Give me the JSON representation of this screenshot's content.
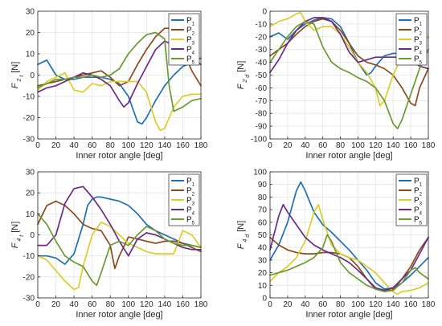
{
  "colors": {
    "P1": "#1f6fb4",
    "P2": "#8c4a1c",
    "P3": "#ddcc28",
    "P4": "#6a2a8a",
    "P5": "#6a9a2e",
    "grid": "#e3e3e3",
    "axis": "#262626"
  },
  "chart_data": [
    {
      "type": "line",
      "ylabel_main": "F",
      "ylabel_sub1": "2",
      "ylabel_sub2": "t",
      "ylabel_unit": "[N]",
      "xlabel": "Inner rotor angle [deg]",
      "xlim": [
        0,
        180
      ],
      "ylim": [
        -30,
        30
      ],
      "xticks": [
        0,
        20,
        40,
        60,
        80,
        100,
        120,
        140,
        160,
        180
      ],
      "yticks": [
        -30,
        -20,
        -10,
        0,
        10,
        20,
        30
      ],
      "grid": true,
      "legend": "top-right",
      "series": [
        {
          "name": "P",
          "sub": "1",
          "key": "P1",
          "x": [
            0,
            10,
            20,
            30,
            40,
            50,
            60,
            70,
            80,
            90,
            100,
            105,
            110,
            115,
            120,
            130,
            140,
            150,
            160,
            170,
            180
          ],
          "y": [
            5,
            7,
            0,
            -2,
            -2,
            -1,
            -1,
            -1,
            -2,
            -4,
            -10,
            -16,
            -22,
            -23,
            -20,
            -12,
            -5,
            0,
            4,
            6,
            8
          ]
        },
        {
          "name": "P",
          "sub": "2",
          "key": "P2",
          "x": [
            0,
            10,
            20,
            30,
            40,
            50,
            60,
            70,
            80,
            90,
            100,
            110,
            120,
            130,
            140,
            150,
            160,
            170,
            180
          ],
          "y": [
            -5,
            -4,
            -3,
            -2,
            -1,
            0,
            1,
            2,
            -1,
            -5,
            -3,
            5,
            12,
            18,
            22,
            22,
            12,
            2,
            -5
          ]
        },
        {
          "name": "P",
          "sub": "3",
          "key": "P3",
          "x": [
            0,
            10,
            20,
            30,
            35,
            40,
            50,
            60,
            70,
            80,
            90,
            100,
            110,
            120,
            130,
            135,
            140,
            150,
            160,
            170,
            180
          ],
          "y": [
            -7,
            -3,
            -1,
            1,
            -3,
            -7,
            -8,
            -4,
            -5,
            -3,
            -3,
            -3,
            -3,
            -8,
            -22,
            -26,
            -25,
            -15,
            -10,
            -9,
            -9
          ]
        },
        {
          "name": "P",
          "sub": "4",
          "key": "P4",
          "x": [
            0,
            10,
            20,
            30,
            40,
            50,
            60,
            70,
            80,
            90,
            95,
            100,
            110,
            120,
            130,
            140,
            150,
            160,
            170,
            180
          ],
          "y": [
            -8,
            -6,
            -5,
            -3,
            -1,
            1,
            0,
            -2,
            -5,
            -12,
            -15,
            -13,
            -4,
            4,
            12,
            16,
            14,
            12,
            8,
            5
          ]
        },
        {
          "name": "P",
          "sub": "5",
          "key": "P5",
          "x": [
            0,
            10,
            20,
            30,
            40,
            50,
            60,
            70,
            80,
            90,
            100,
            110,
            120,
            130,
            140,
            145,
            150,
            160,
            170,
            180
          ],
          "y": [
            -6,
            -4,
            -2,
            -2,
            -1,
            -1,
            0,
            -1,
            0,
            3,
            10,
            15,
            19,
            20,
            17,
            -5,
            -17,
            -15,
            -12,
            -11
          ]
        }
      ]
    },
    {
      "type": "line",
      "ylabel_main": "F",
      "ylabel_sub1": "2",
      "ylabel_sub2": "d",
      "ylabel_unit": "[N]",
      "xlabel": "Inner rotor angle [deg]",
      "xlim": [
        0,
        180
      ],
      "ylim": [
        -100,
        0
      ],
      "xticks": [
        0,
        20,
        40,
        60,
        80,
        100,
        120,
        140,
        160,
        180
      ],
      "yticks": [
        -100,
        -90,
        -80,
        -70,
        -60,
        -50,
        -40,
        -30,
        -20,
        -10,
        0
      ],
      "grid": true,
      "legend": "top-right",
      "series": [
        {
          "name": "P",
          "sub": "1",
          "key": "P1",
          "x": [
            0,
            10,
            20,
            30,
            40,
            50,
            60,
            70,
            80,
            90,
            100,
            110,
            115,
            120,
            130,
            140,
            150,
            160,
            170,
            180
          ],
          "y": [
            -20,
            -17,
            -22,
            -15,
            -10,
            -7,
            -5,
            -6,
            -12,
            -25,
            -40,
            -50,
            -48,
            -43,
            -35,
            -33,
            -33,
            -30,
            -25,
            -20
          ]
        },
        {
          "name": "P",
          "sub": "2",
          "key": "P2",
          "x": [
            0,
            10,
            20,
            30,
            40,
            50,
            60,
            70,
            80,
            90,
            100,
            110,
            120,
            130,
            140,
            150,
            160,
            165,
            170,
            180
          ],
          "y": [
            -35,
            -30,
            -25,
            -18,
            -12,
            -8,
            -6,
            -8,
            -15,
            -25,
            -35,
            -40,
            -42,
            -45,
            -50,
            -60,
            -72,
            -74,
            -60,
            -45
          ]
        },
        {
          "name": "P",
          "sub": "3",
          "key": "P3",
          "x": [
            0,
            10,
            20,
            30,
            35,
            40,
            50,
            60,
            70,
            80,
            90,
            100,
            110,
            120,
            125,
            130,
            140,
            150,
            160,
            170,
            180
          ],
          "y": [
            -12,
            -8,
            -6,
            -2,
            -1,
            -8,
            -15,
            -12,
            -12,
            -18,
            -28,
            -40,
            -48,
            -60,
            -74,
            -70,
            -50,
            -35,
            -30,
            -25,
            -20
          ]
        },
        {
          "name": "P",
          "sub": "4",
          "key": "P4",
          "x": [
            0,
            10,
            20,
            30,
            40,
            50,
            60,
            70,
            80,
            90,
            100,
            110,
            120,
            130,
            140,
            150,
            160,
            170,
            180
          ],
          "y": [
            -48,
            -38,
            -25,
            -15,
            -8,
            -5,
            -5,
            -8,
            -18,
            -32,
            -40,
            -38,
            -36,
            -36,
            -36,
            -36,
            -38,
            -43,
            -45
          ]
        },
        {
          "name": "P",
          "sub": "5",
          "key": "P5",
          "x": [
            0,
            10,
            20,
            30,
            40,
            50,
            60,
            70,
            80,
            90,
            100,
            110,
            120,
            130,
            140,
            145,
            150,
            160,
            170,
            180
          ],
          "y": [
            -40,
            -30,
            -20,
            -12,
            -8,
            -10,
            -28,
            -40,
            -45,
            -48,
            -52,
            -55,
            -60,
            -70,
            -88,
            -92,
            -85,
            -65,
            -45,
            -30
          ]
        }
      ]
    },
    {
      "type": "line",
      "ylabel_main": "F",
      "ylabel_sub1": "4",
      "ylabel_sub2": "t",
      "ylabel_unit": "[N]",
      "xlabel": "Inner rotor angle [deg]",
      "xlim": [
        0,
        180
      ],
      "ylim": [
        -30,
        30
      ],
      "xticks": [
        0,
        20,
        40,
        60,
        80,
        100,
        120,
        140,
        160,
        180
      ],
      "yticks": [
        -30,
        -20,
        -10,
        0,
        10,
        20,
        30
      ],
      "grid": true,
      "legend": "top-right",
      "series": [
        {
          "name": "P",
          "sub": "1",
          "key": "P1",
          "x": [
            0,
            10,
            20,
            30,
            40,
            50,
            55,
            60,
            65,
            70,
            80,
            90,
            100,
            110,
            120,
            130,
            140,
            150,
            160,
            170,
            180
          ],
          "y": [
            -10,
            -10,
            -11,
            -14,
            -9,
            5,
            14,
            17,
            18,
            18,
            17,
            16,
            14,
            10,
            5,
            2,
            0,
            -2,
            -4,
            -5,
            -6
          ]
        },
        {
          "name": "P",
          "sub": "2",
          "key": "P2",
          "x": [
            0,
            10,
            20,
            30,
            40,
            50,
            60,
            70,
            80,
            85,
            90,
            100,
            110,
            120,
            130,
            140,
            150,
            160,
            170,
            180
          ],
          "y": [
            5,
            14,
            16,
            14,
            10,
            5,
            3,
            2,
            -5,
            -16,
            -10,
            -1,
            -2,
            -3,
            -4,
            -3,
            -3,
            -4,
            -6,
            -8
          ]
        },
        {
          "name": "P",
          "sub": "3",
          "key": "P3",
          "x": [
            0,
            10,
            20,
            30,
            40,
            45,
            50,
            60,
            70,
            80,
            90,
            100,
            110,
            120,
            130,
            140,
            150,
            160,
            170,
            180
          ],
          "y": [
            -10,
            -12,
            -17,
            -22,
            -26,
            -25,
            -15,
            0,
            6,
            4,
            0,
            -4,
            -6,
            -8,
            -9,
            -9,
            -9,
            2,
            0,
            -6
          ]
        },
        {
          "name": "P",
          "sub": "4",
          "key": "P4",
          "x": [
            0,
            10,
            20,
            30,
            40,
            50,
            60,
            70,
            80,
            90,
            100,
            110,
            120,
            130,
            140,
            150,
            160,
            170,
            180
          ],
          "y": [
            -5,
            -5,
            0,
            15,
            22,
            23,
            18,
            12,
            5,
            -3,
            -10,
            -2,
            1,
            0,
            -2,
            -4,
            -6,
            -7,
            -7
          ]
        },
        {
          "name": "P",
          "sub": "5",
          "key": "P5",
          "x": [
            0,
            10,
            20,
            30,
            40,
            50,
            60,
            65,
            70,
            80,
            90,
            100,
            110,
            120,
            130,
            140,
            150,
            160,
            170,
            180
          ],
          "y": [
            10,
            5,
            -3,
            -10,
            -13,
            -15,
            -22,
            -24,
            -18,
            -5,
            -3,
            -5,
            0,
            4,
            2,
            -2,
            -4,
            -5,
            -5,
            -6
          ]
        }
      ]
    },
    {
      "type": "line",
      "ylabel_main": "F",
      "ylabel_sub1": "4",
      "ylabel_sub2": "d",
      "ylabel_unit": "[N]",
      "xlabel": "Inner rotor angle [deg]",
      "xlim": [
        0,
        180
      ],
      "ylim": [
        0,
        100
      ],
      "xticks": [
        0,
        20,
        40,
        60,
        80,
        100,
        120,
        140,
        160,
        180
      ],
      "yticks": [
        0,
        10,
        20,
        30,
        40,
        50,
        60,
        70,
        80,
        90,
        100
      ],
      "grid": true,
      "legend": "top-right",
      "series": [
        {
          "name": "P",
          "sub": "1",
          "key": "P1",
          "x": [
            0,
            10,
            20,
            30,
            35,
            40,
            50,
            60,
            70,
            80,
            90,
            100,
            110,
            120,
            130,
            140,
            150,
            160,
            170,
            180
          ],
          "y": [
            30,
            42,
            60,
            85,
            92,
            85,
            68,
            58,
            52,
            45,
            38,
            30,
            22,
            12,
            7,
            8,
            12,
            18,
            25,
            32
          ]
        },
        {
          "name": "P",
          "sub": "2",
          "key": "P2",
          "x": [
            0,
            10,
            20,
            30,
            40,
            50,
            60,
            70,
            80,
            90,
            100,
            110,
            120,
            130,
            140,
            150,
            160,
            170,
            180
          ],
          "y": [
            48,
            42,
            38,
            36,
            35,
            35,
            36,
            36,
            35,
            32,
            25,
            15,
            7,
            5,
            7,
            15,
            25,
            38,
            48
          ]
        },
        {
          "name": "P",
          "sub": "3",
          "key": "P3",
          "x": [
            0,
            10,
            20,
            30,
            40,
            50,
            55,
            60,
            70,
            80,
            90,
            100,
            110,
            120,
            130,
            140,
            145,
            150,
            160,
            170,
            180
          ],
          "y": [
            13,
            20,
            25,
            32,
            45,
            68,
            74,
            62,
            42,
            35,
            32,
            30,
            25,
            20,
            12,
            5,
            3,
            5,
            6,
            8,
            12
          ]
        },
        {
          "name": "P",
          "sub": "4",
          "key": "P4",
          "x": [
            0,
            10,
            15,
            20,
            30,
            40,
            50,
            60,
            70,
            80,
            90,
            100,
            110,
            120,
            130,
            140,
            150,
            160,
            170,
            180
          ],
          "y": [
            38,
            65,
            74,
            68,
            58,
            48,
            42,
            38,
            35,
            32,
            28,
            22,
            15,
            8,
            6,
            8,
            15,
            22,
            35,
            48
          ]
        },
        {
          "name": "P",
          "sub": "5",
          "key": "P5",
          "x": [
            0,
            10,
            20,
            30,
            40,
            50,
            60,
            65,
            70,
            80,
            90,
            100,
            110,
            120,
            130,
            140,
            150,
            160,
            165,
            170,
            180
          ],
          "y": [
            18,
            20,
            22,
            25,
            28,
            32,
            40,
            50,
            45,
            28,
            20,
            15,
            10,
            7,
            5,
            6,
            12,
            22,
            24,
            20,
            15
          ]
        }
      ]
    }
  ]
}
